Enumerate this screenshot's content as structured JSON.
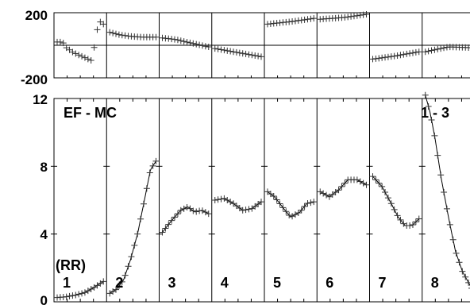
{
  "chart_data": {
    "type": "scatter",
    "title": "EF - MC",
    "annotation": "1 - 3",
    "annotation_unit": "(RR)",
    "panels": {
      "top": {
        "ylim": [
          -200,
          200
        ],
        "ytick_labels": [
          "200",
          "-200"
        ],
        "reference_line": 0
      },
      "main": {
        "ylim": [
          0,
          12
        ],
        "ytick_labels": [
          "12",
          "8",
          "4",
          "0"
        ]
      }
    },
    "segment_labels": [
      "1",
      "2",
      "3",
      "4",
      "5",
      "6",
      "7",
      "8"
    ],
    "series": [
      {
        "segment": "1",
        "phase": [
          [
            0,
            20
          ],
          [
            0.12,
            20
          ],
          [
            0.2,
            -15
          ],
          [
            0.35,
            -45
          ],
          [
            0.55,
            -70
          ],
          [
            0.75,
            -95
          ],
          [
            0.9,
            150
          ],
          [
            1,
            130
          ]
        ],
        "value": [
          [
            0,
            0.25
          ],
          [
            0.2,
            0.3
          ],
          [
            0.4,
            0.4
          ],
          [
            0.6,
            0.55
          ],
          [
            0.8,
            0.85
          ],
          [
            1,
            1.2
          ]
        ]
      },
      {
        "segment": "2",
        "phase": [
          [
            0,
            80
          ],
          [
            0.2,
            65
          ],
          [
            0.45,
            55
          ],
          [
            0.7,
            50
          ],
          [
            1,
            50
          ]
        ],
        "value": [
          [
            0,
            0.5
          ],
          [
            0.15,
            0.75
          ],
          [
            0.3,
            1.3
          ],
          [
            0.45,
            2.5
          ],
          [
            0.6,
            4.0
          ],
          [
            0.75,
            6.0
          ],
          [
            0.88,
            7.8
          ],
          [
            1,
            8.3
          ]
        ]
      },
      {
        "segment": "3",
        "phase": [
          [
            0,
            45
          ],
          [
            0.3,
            35
          ],
          [
            0.6,
            15
          ],
          [
            1,
            -10
          ]
        ],
        "value": [
          [
            0,
            4.1
          ],
          [
            0.2,
            4.8
          ],
          [
            0.4,
            5.4
          ],
          [
            0.55,
            5.6
          ],
          [
            0.7,
            5.3
          ],
          [
            0.85,
            5.4
          ],
          [
            1,
            5.2
          ]
        ]
      },
      {
        "segment": "4",
        "phase": [
          [
            0,
            -20
          ],
          [
            0.5,
            -45
          ],
          [
            1,
            -70
          ]
        ],
        "value": [
          [
            0,
            6.0
          ],
          [
            0.2,
            6.1
          ],
          [
            0.4,
            5.8
          ],
          [
            0.6,
            5.4
          ],
          [
            0.8,
            5.5
          ],
          [
            1,
            5.9
          ]
        ]
      },
      {
        "segment": "5",
        "phase": [
          [
            0,
            130
          ],
          [
            0.5,
            145
          ],
          [
            1,
            165
          ]
        ],
        "value": [
          [
            0,
            6.5
          ],
          [
            0.15,
            6.2
          ],
          [
            0.35,
            5.5
          ],
          [
            0.5,
            5.0
          ],
          [
            0.7,
            5.3
          ],
          [
            0.85,
            5.8
          ],
          [
            1,
            5.9
          ]
        ]
      },
      {
        "segment": "6",
        "phase": [
          [
            0,
            160
          ],
          [
            0.5,
            170
          ],
          [
            1,
            190
          ]
        ],
        "value": [
          [
            0,
            6.5
          ],
          [
            0.2,
            6.2
          ],
          [
            0.4,
            6.6
          ],
          [
            0.6,
            7.2
          ],
          [
            0.8,
            7.2
          ],
          [
            1,
            6.9
          ]
        ]
      },
      {
        "segment": "7",
        "phase": [
          [
            0,
            -85
          ],
          [
            0.5,
            -65
          ],
          [
            1,
            -40
          ]
        ],
        "value": [
          [
            0,
            7.4
          ],
          [
            0.2,
            6.8
          ],
          [
            0.4,
            5.8
          ],
          [
            0.55,
            5.0
          ],
          [
            0.7,
            4.5
          ],
          [
            0.85,
            4.5
          ],
          [
            1,
            4.9
          ]
        ]
      },
      {
        "segment": "8",
        "phase": [
          [
            0,
            -40
          ],
          [
            0.5,
            -10
          ],
          [
            1,
            -15
          ]
        ],
        "value": [
          [
            0,
            12.2
          ],
          [
            0.1,
            11.2
          ],
          [
            0.2,
            9.8
          ],
          [
            0.35,
            7.2
          ],
          [
            0.5,
            5.0
          ],
          [
            0.65,
            3.0
          ],
          [
            0.8,
            1.8
          ],
          [
            1,
            0.8
          ]
        ]
      }
    ]
  }
}
